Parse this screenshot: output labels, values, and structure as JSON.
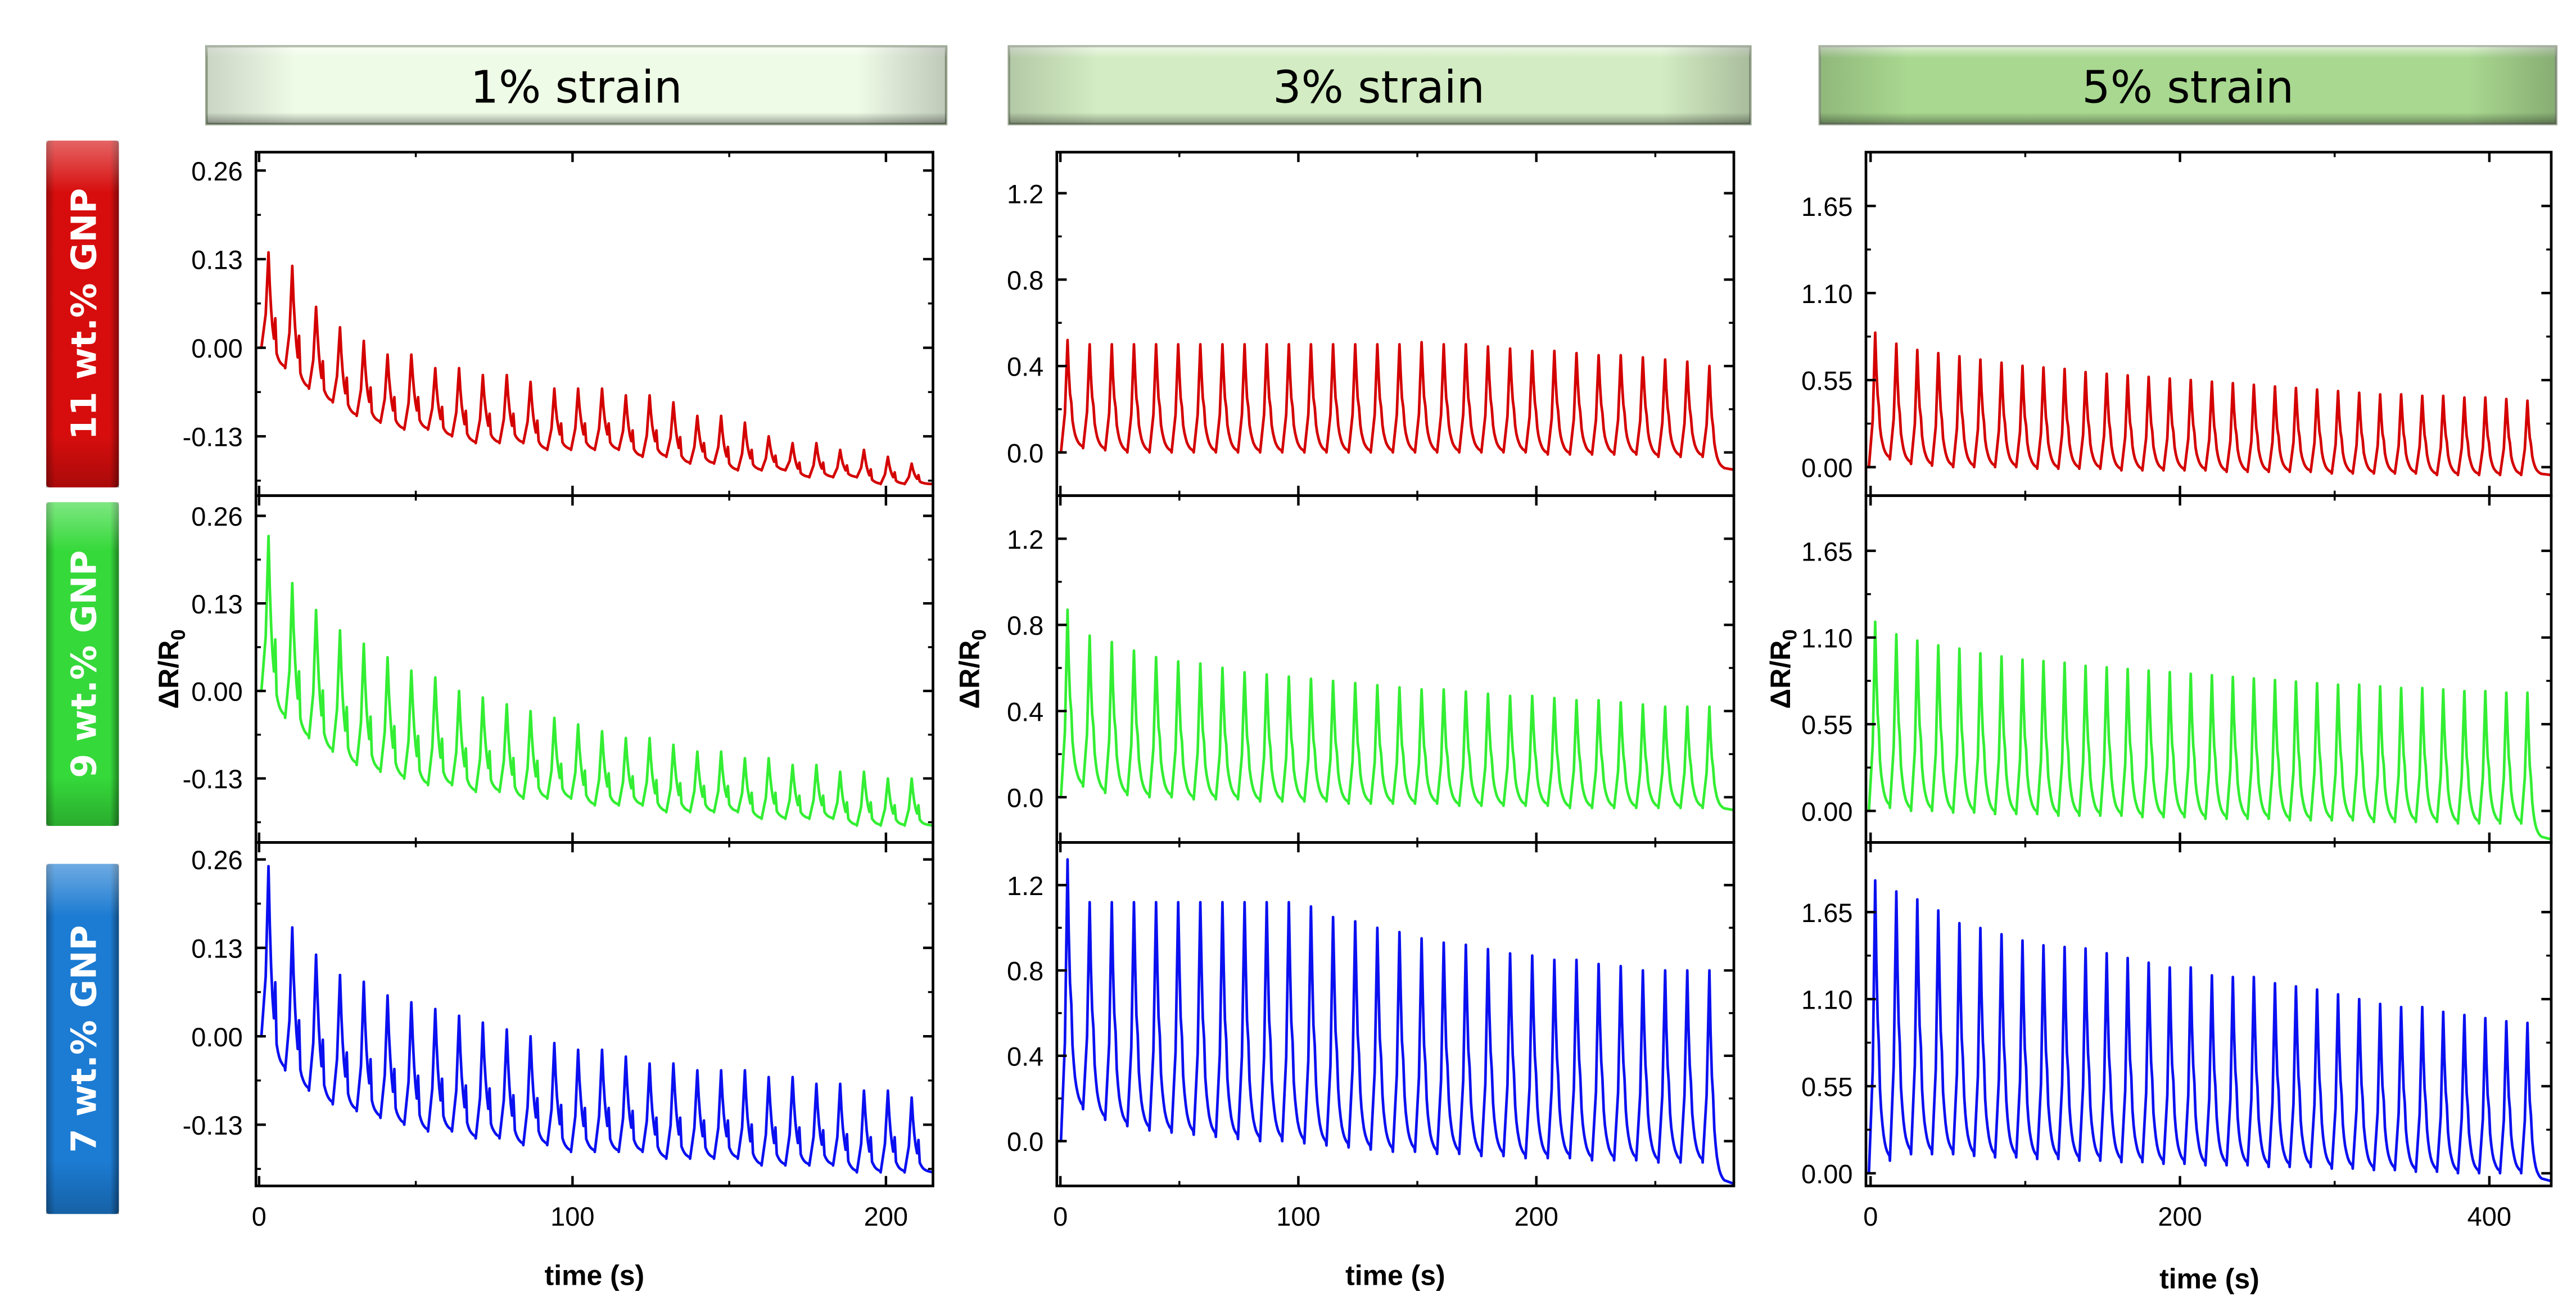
{
  "columns": [
    {
      "header": "1% strain",
      "header_color": "#eefbe6",
      "xlabel": "time (s)",
      "xlim": [
        -1,
        215
      ],
      "xticks": [
        0,
        100,
        200
      ],
      "xminor": [
        50,
        150
      ]
    },
    {
      "header": "3% strain",
      "header_color": "#d3ecc3",
      "xlabel": "time (s)",
      "xlim": [
        -1.5,
        283
      ],
      "xticks": [
        0,
        100,
        200
      ],
      "xminor": [
        50,
        150,
        250
      ]
    },
    {
      "header": "5% strain",
      "header_color": "#a9d890",
      "xlabel": "time (s)",
      "xlim": [
        -3,
        440
      ],
      "xticks": [
        0,
        200,
        400
      ],
      "xminor": [
        100,
        300
      ]
    }
  ],
  "rows": [
    {
      "label": "11 wt.% GNP",
      "color": "#d70d0d",
      "line_color": "#d40000"
    },
    {
      "label": "9 wt.% GNP",
      "color": "#35d93a",
      "line_color": "#33ee33"
    },
    {
      "label": "7 wt.% GNP",
      "color": "#1c7bd2",
      "line_color": "#0a10f0"
    }
  ],
  "ylabel_main": "ΔR/R",
  "ylabel_sub": "0",
  "chart_data": [
    {
      "type": "line",
      "column": 0,
      "row": 0,
      "ylim": [
        -0.217,
        0.287
      ],
      "yticks": [
        0.26,
        0.13,
        0.0,
        -0.13
      ],
      "ytick_labels": [
        "0.26",
        "0.13",
        "0.00",
        "-0.13"
      ],
      "yminor": [
        0.195,
        0.065,
        -0.065,
        -0.195
      ],
      "series": {
        "t_start": 3,
        "period": 7.6,
        "start": 0.0,
        "peaks": [
          0.14,
          0.12,
          0.06,
          0.03,
          0.01,
          -0.01,
          -0.01,
          -0.03,
          -0.03,
          -0.04,
          -0.04,
          -0.05,
          -0.06,
          -0.06,
          -0.06,
          -0.07,
          -0.07,
          -0.08,
          -0.1,
          -0.1,
          -0.11,
          -0.13,
          -0.14,
          -0.14,
          -0.15,
          -0.15,
          -0.16,
          -0.17
        ],
        "valleys": [
          -0.03,
          -0.06,
          -0.08,
          -0.1,
          -0.11,
          -0.12,
          -0.12,
          -0.13,
          -0.14,
          -0.14,
          -0.14,
          -0.15,
          -0.15,
          -0.15,
          -0.15,
          -0.16,
          -0.16,
          -0.17,
          -0.17,
          -0.18,
          -0.18,
          -0.18,
          -0.19,
          -0.19,
          -0.19,
          -0.2,
          -0.2,
          -0.2
        ]
      }
    },
    {
      "type": "line",
      "column": 0,
      "row": 1,
      "ylim": [
        -0.225,
        0.29
      ],
      "yticks": [
        0.26,
        0.13,
        0.0,
        -0.13
      ],
      "ytick_labels": [
        "0.26",
        "0.13",
        "0.00",
        "-0.13"
      ],
      "yminor": [
        0.195,
        0.065,
        -0.065,
        -0.195
      ],
      "series": {
        "t_start": 3,
        "period": 7.6,
        "start": 0.0,
        "peaks": [
          0.23,
          0.16,
          0.12,
          0.09,
          0.07,
          0.05,
          0.03,
          0.02,
          0.0,
          -0.01,
          -0.02,
          -0.03,
          -0.04,
          -0.05,
          -0.06,
          -0.07,
          -0.07,
          -0.08,
          -0.09,
          -0.09,
          -0.1,
          -0.1,
          -0.11,
          -0.11,
          -0.12,
          -0.12,
          -0.13,
          -0.13
        ],
        "valleys": [
          -0.04,
          -0.07,
          -0.09,
          -0.11,
          -0.12,
          -0.13,
          -0.14,
          -0.14,
          -0.15,
          -0.15,
          -0.16,
          -0.16,
          -0.16,
          -0.17,
          -0.17,
          -0.17,
          -0.18,
          -0.18,
          -0.18,
          -0.18,
          -0.19,
          -0.19,
          -0.19,
          -0.19,
          -0.2,
          -0.2,
          -0.2,
          -0.2
        ]
      }
    },
    {
      "type": "line",
      "column": 0,
      "row": 2,
      "ylim": [
        -0.22,
        0.285
      ],
      "yticks": [
        0.26,
        0.13,
        0.0,
        -0.13
      ],
      "ytick_labels": [
        "0.26",
        "0.13",
        "0.00",
        "-0.13"
      ],
      "yminor": [
        0.195,
        0.065,
        -0.065,
        -0.195
      ],
      "series": {
        "t_start": 3,
        "period": 7.6,
        "start": 0.0,
        "peaks": [
          0.25,
          0.16,
          0.12,
          0.09,
          0.08,
          0.06,
          0.05,
          0.04,
          0.03,
          0.02,
          0.01,
          0.0,
          -0.01,
          -0.02,
          -0.02,
          -0.03,
          -0.04,
          -0.04,
          -0.05,
          -0.05,
          -0.05,
          -0.06,
          -0.06,
          -0.07,
          -0.07,
          -0.08,
          -0.08,
          -0.09
        ],
        "valleys": [
          -0.05,
          -0.08,
          -0.1,
          -0.11,
          -0.12,
          -0.13,
          -0.14,
          -0.14,
          -0.15,
          -0.15,
          -0.16,
          -0.16,
          -0.17,
          -0.17,
          -0.17,
          -0.17,
          -0.18,
          -0.18,
          -0.18,
          -0.18,
          -0.19,
          -0.19,
          -0.19,
          -0.19,
          -0.2,
          -0.2,
          -0.2,
          -0.2
        ]
      }
    },
    {
      "type": "line",
      "column": 1,
      "row": 0,
      "ylim": [
        -0.2,
        1.39
      ],
      "yticks": [
        1.2,
        0.8,
        0.4,
        0.0
      ],
      "ytick_labels": [
        "1.2",
        "0.8",
        "0.4",
        "0.0"
      ],
      "yminor": [
        1.0,
        0.6,
        0.2
      ],
      "series": {
        "t_start": 3,
        "period": 9.3,
        "start": 0.0,
        "peaks": [
          0.52,
          0.5,
          0.5,
          0.5,
          0.5,
          0.5,
          0.5,
          0.5,
          0.5,
          0.5,
          0.5,
          0.5,
          0.5,
          0.5,
          0.5,
          0.5,
          0.51,
          0.5,
          0.5,
          0.49,
          0.48,
          0.47,
          0.47,
          0.46,
          0.45,
          0.45,
          0.44,
          0.43,
          0.42,
          0.4
        ],
        "valleys": [
          0.02,
          0.01,
          0.0,
          0.0,
          0.0,
          0.0,
          0.0,
          0.0,
          0.0,
          0.0,
          0.0,
          0.0,
          0.0,
          0.0,
          0.0,
          0.0,
          0.0,
          0.0,
          0.0,
          0.0,
          0.0,
          -0.01,
          -0.01,
          -0.01,
          -0.01,
          -0.01,
          -0.02,
          -0.02,
          -0.02,
          -0.08
        ]
      }
    },
    {
      "type": "line",
      "column": 1,
      "row": 1,
      "ylim": [
        -0.21,
        1.4
      ],
      "yticks": [
        1.2,
        0.8,
        0.4,
        0.0
      ],
      "ytick_labels": [
        "1.2",
        "0.8",
        "0.4",
        "0.0"
      ],
      "yminor": [
        1.0,
        0.6,
        0.2
      ],
      "series": {
        "t_start": 3,
        "period": 9.3,
        "start": 0.0,
        "peaks": [
          0.87,
          0.75,
          0.72,
          0.68,
          0.65,
          0.63,
          0.62,
          0.6,
          0.58,
          0.57,
          0.56,
          0.55,
          0.54,
          0.53,
          0.52,
          0.51,
          0.5,
          0.5,
          0.49,
          0.48,
          0.47,
          0.47,
          0.46,
          0.45,
          0.45,
          0.44,
          0.43,
          0.42,
          0.42,
          0.42
        ],
        "valleys": [
          0.05,
          0.02,
          0.01,
          0.0,
          0.0,
          -0.01,
          -0.01,
          -0.01,
          -0.02,
          -0.02,
          -0.02,
          -0.02,
          -0.03,
          -0.03,
          -0.03,
          -0.03,
          -0.03,
          -0.04,
          -0.04,
          -0.04,
          -0.04,
          -0.04,
          -0.05,
          -0.05,
          -0.05,
          -0.05,
          -0.05,
          -0.05,
          -0.05,
          -0.06
        ]
      }
    },
    {
      "type": "line",
      "column": 1,
      "row": 2,
      "ylim": [
        -0.21,
        1.4
      ],
      "yticks": [
        1.2,
        0.8,
        0.4,
        0.0
      ],
      "ytick_labels": [
        "1.2",
        "0.8",
        "0.4",
        "0.0"
      ],
      "yminor": [
        1.0,
        0.6,
        0.2
      ],
      "series": {
        "t_start": 3,
        "period": 9.3,
        "start": 0.0,
        "peaks": [
          1.32,
          1.12,
          1.12,
          1.12,
          1.12,
          1.12,
          1.12,
          1.12,
          1.12,
          1.12,
          1.12,
          1.1,
          1.05,
          1.03,
          1.0,
          0.98,
          0.95,
          0.93,
          0.92,
          0.9,
          0.88,
          0.87,
          0.85,
          0.85,
          0.83,
          0.82,
          0.8,
          0.8,
          0.8,
          0.8
        ],
        "valleys": [
          0.15,
          0.1,
          0.07,
          0.05,
          0.04,
          0.03,
          0.02,
          0.01,
          0.0,
          0.0,
          -0.01,
          -0.02,
          -0.03,
          -0.04,
          -0.05,
          -0.05,
          -0.06,
          -0.06,
          -0.07,
          -0.07,
          -0.08,
          -0.08,
          -0.08,
          -0.09,
          -0.09,
          -0.09,
          -0.1,
          -0.1,
          -0.1,
          -0.2
        ]
      }
    },
    {
      "type": "line",
      "column": 2,
      "row": 0,
      "ylim": [
        -0.18,
        1.99
      ],
      "yticks": [
        1.65,
        1.1,
        0.55,
        0.0
      ],
      "ytick_labels": [
        "1.65",
        "1.10",
        "0.55",
        "0.00"
      ],
      "yminor": [
        1.375,
        0.825,
        0.275
      ],
      "series": {
        "t_start": 3,
        "period": 13.6,
        "start": 0.0,
        "peaks": [
          0.85,
          0.78,
          0.74,
          0.72,
          0.7,
          0.68,
          0.66,
          0.64,
          0.63,
          0.62,
          0.6,
          0.59,
          0.58,
          0.57,
          0.56,
          0.55,
          0.54,
          0.53,
          0.52,
          0.51,
          0.5,
          0.49,
          0.48,
          0.47,
          0.46,
          0.46,
          0.45,
          0.45,
          0.44,
          0.44,
          0.43,
          0.42
        ],
        "valleys": [
          0.05,
          0.02,
          0.01,
          0.0,
          0.0,
          0.0,
          0.0,
          -0.01,
          -0.01,
          -0.01,
          -0.01,
          -0.02,
          -0.02,
          -0.02,
          -0.02,
          -0.02,
          -0.03,
          -0.03,
          -0.03,
          -0.03,
          -0.03,
          -0.04,
          -0.04,
          -0.04,
          -0.04,
          -0.04,
          -0.05,
          -0.05,
          -0.05,
          -0.05,
          -0.05,
          -0.05
        ]
      }
    },
    {
      "type": "line",
      "column": 2,
      "row": 1,
      "ylim": [
        -0.2,
        2.0
      ],
      "yticks": [
        1.65,
        1.1,
        0.55,
        0.0
      ],
      "ytick_labels": [
        "1.65",
        "1.10",
        "0.55",
        "0.00"
      ],
      "yminor": [
        1.375,
        0.825,
        0.275
      ],
      "series": {
        "t_start": 3,
        "period": 13.6,
        "start": 0.0,
        "peaks": [
          1.2,
          1.12,
          1.08,
          1.05,
          1.03,
          1.0,
          0.98,
          0.96,
          0.95,
          0.94,
          0.92,
          0.91,
          0.9,
          0.89,
          0.88,
          0.87,
          0.86,
          0.85,
          0.84,
          0.83,
          0.82,
          0.81,
          0.8,
          0.8,
          0.79,
          0.78,
          0.78,
          0.77,
          0.76,
          0.76,
          0.75,
          0.75
        ],
        "valleys": [
          0.02,
          0.0,
          0.0,
          -0.01,
          -0.01,
          -0.02,
          -0.02,
          -0.02,
          -0.03,
          -0.03,
          -0.03,
          -0.03,
          -0.04,
          -0.04,
          -0.04,
          -0.05,
          -0.05,
          -0.05,
          -0.05,
          -0.06,
          -0.06,
          -0.06,
          -0.06,
          -0.07,
          -0.07,
          -0.07,
          -0.07,
          -0.08,
          -0.08,
          -0.08,
          -0.08,
          -0.18
        ]
      }
    },
    {
      "type": "line",
      "column": 2,
      "row": 2,
      "ylim": [
        -0.08,
        2.09
      ],
      "yticks": [
        1.65,
        1.1,
        0.55,
        0.0
      ],
      "ytick_labels": [
        "1.65",
        "1.10",
        "0.55",
        "0.00"
      ],
      "yminor": [
        1.375,
        0.825,
        0.275
      ],
      "series": {
        "t_start": 3,
        "period": 13.6,
        "start": 0.0,
        "peaks": [
          1.85,
          1.78,
          1.73,
          1.66,
          1.58,
          1.55,
          1.51,
          1.47,
          1.44,
          1.43,
          1.42,
          1.39,
          1.36,
          1.33,
          1.3,
          1.3,
          1.25,
          1.24,
          1.24,
          1.2,
          1.18,
          1.16,
          1.13,
          1.1,
          1.07,
          1.05,
          1.05,
          1.02,
          1.0,
          0.98,
          0.96,
          0.95
        ],
        "valleys": [
          0.08,
          0.12,
          0.12,
          0.12,
          0.11,
          0.1,
          0.1,
          0.09,
          0.09,
          0.08,
          0.08,
          0.07,
          0.07,
          0.06,
          0.06,
          0.05,
          0.05,
          0.05,
          0.04,
          0.04,
          0.04,
          0.03,
          0.03,
          0.02,
          0.02,
          0.01,
          0.01,
          0.0,
          0.0,
          0.0,
          0.0,
          -0.05
        ]
      }
    }
  ]
}
